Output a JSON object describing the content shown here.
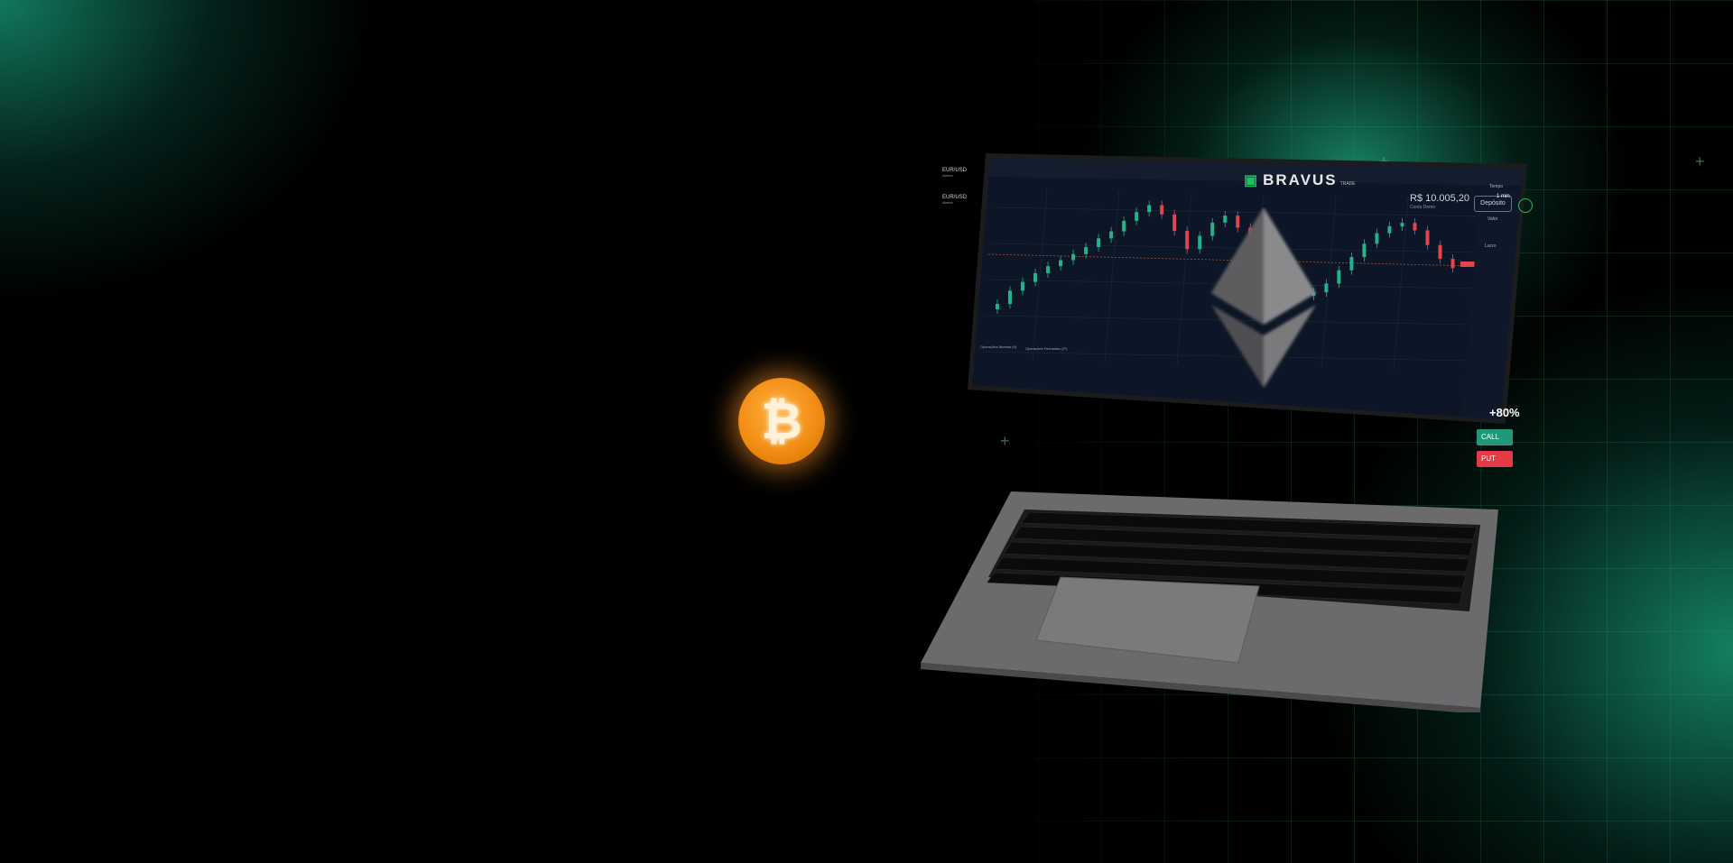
{
  "header": {
    "brand_name": "BRAVUS",
    "brand_suffix": "TRADE",
    "balance": "R$ 10.005,20",
    "balance_caption": "Conta Demo",
    "deposit_label": "Depósito"
  },
  "assets": {
    "tab_asset": "EUR/USD",
    "tab_asset_sub": "Aberto",
    "selected_asset": "EUR/USD",
    "selected_asset_sub": "Aberto"
  },
  "trade_panel": {
    "time_label": "Tempo",
    "time_value": "1 min",
    "amount_label": "Valor",
    "payout_label": "Lucro",
    "payout_value": "+80%",
    "call_label": "CALL",
    "put_label": "PUT"
  },
  "bottom_tabs": {
    "open_ops": "Operações Abertas (0)",
    "closed_ops": "Operações Fechadas (27)"
  },
  "colors": {
    "accent_green": "#20c060",
    "call_green": "#1e9a7a",
    "put_red": "#e23b45",
    "candle_up": "#22b38a",
    "candle_down": "#e5434d",
    "bitcoin_orange": "#f08a10"
  },
  "icons": [
    "bitcoin-icon",
    "ethereum-icon",
    "user-icon",
    "wallet-icon"
  ]
}
